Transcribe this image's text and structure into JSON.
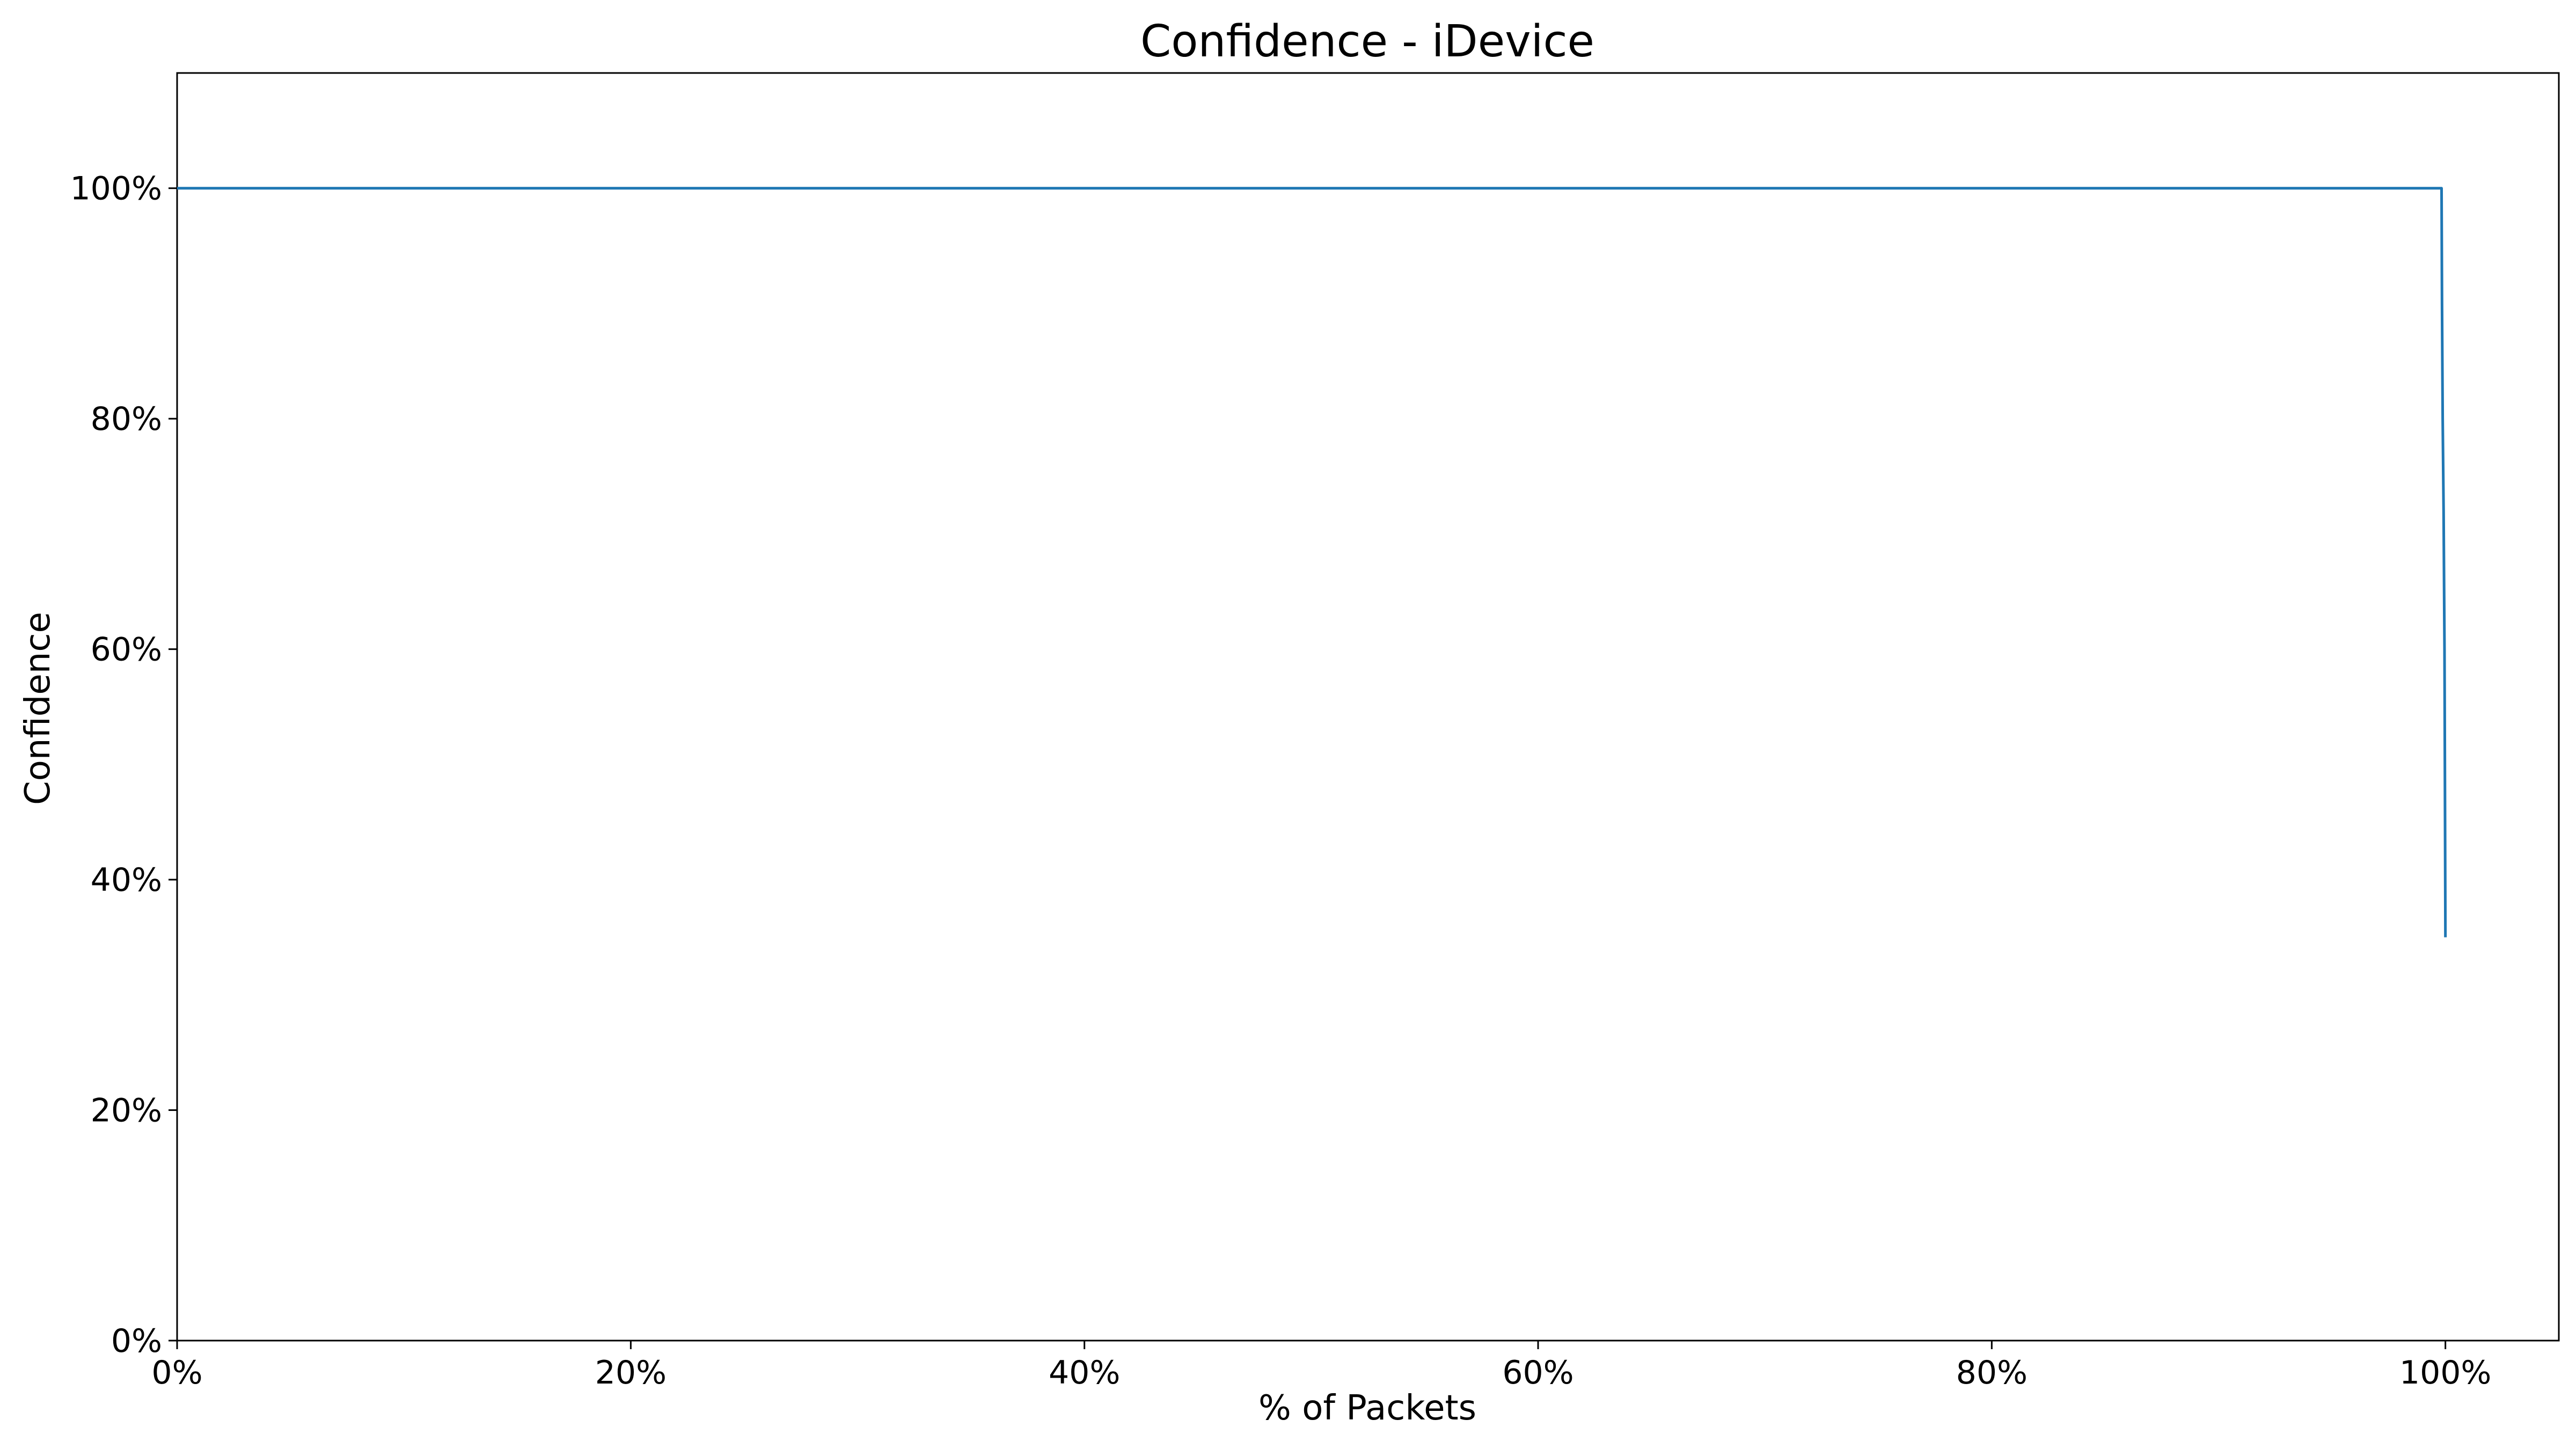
{
  "chart_data": {
    "type": "line",
    "title": "Confidence - iDevice",
    "xlabel": "% of Packets",
    "ylabel": "Confidence",
    "xlim": [
      0,
      1.05
    ],
    "ylim": [
      0,
      1.1
    ],
    "x_ticks": [
      0,
      0.2,
      0.4,
      0.6,
      0.8,
      1.0
    ],
    "x_tick_labels": [
      "0%",
      "20%",
      "40%",
      "60%",
      "80%",
      "100%"
    ],
    "y_ticks": [
      0,
      0.2,
      0.4,
      0.6,
      0.8,
      1.0
    ],
    "y_tick_labels": [
      "0%",
      "20%",
      "40%",
      "60%",
      "80%",
      "100%"
    ],
    "grid": false,
    "legend": "none",
    "series": [
      {
        "color": "#1f77b4",
        "x": [
          0,
          0.5,
          0.97,
          0.9983,
          0.9985,
          0.9988,
          0.9992,
          0.9996,
          1.0
        ],
        "y": [
          1.0,
          1.0,
          1.0,
          1.0,
          0.9,
          0.8,
          0.72,
          0.6,
          0.35
        ]
      }
    ]
  }
}
